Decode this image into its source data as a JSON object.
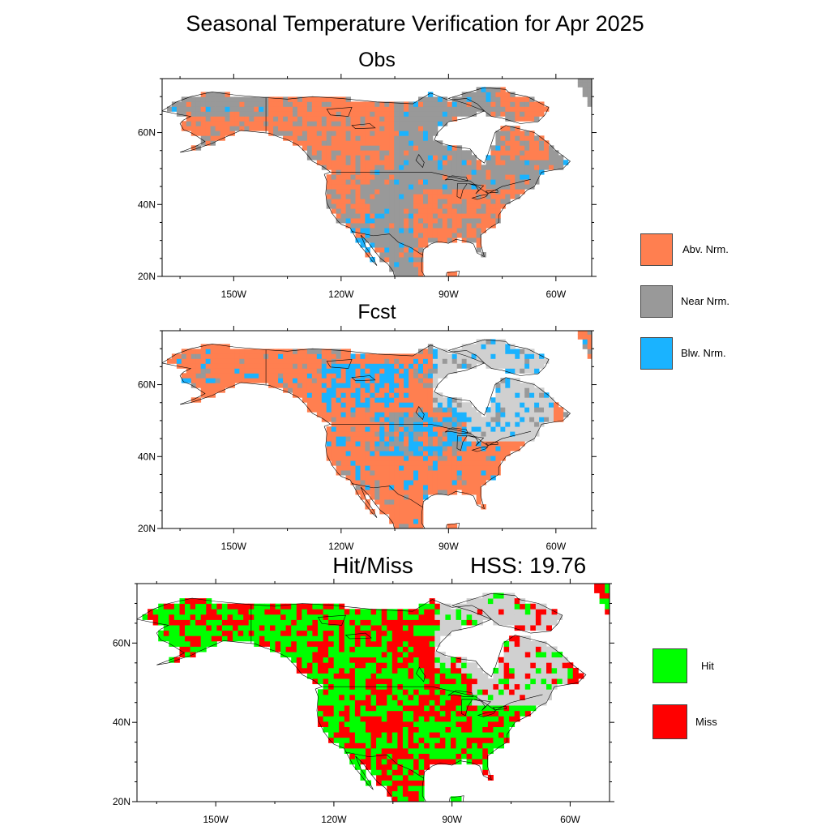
{
  "title": "Seasonal Temperature Verification for Apr 2025",
  "panels": {
    "obs": {
      "title": "Obs"
    },
    "fcst": {
      "title": "Fcst"
    },
    "hitmiss": {
      "title": "Hit/Miss",
      "hss": "HSS: 19.76"
    }
  },
  "axes": {
    "lon_ticks": [
      "150W",
      "120W",
      "90W",
      "60W"
    ],
    "lat_ticks": [
      "60N",
      "40N",
      "20N"
    ]
  },
  "legend_categories": [
    {
      "label": "Abv. Nrm.",
      "color": "#ff7f50"
    },
    {
      "label": "Near Nrm.",
      "color": "#999999"
    },
    {
      "label": "Blw. Nrm.",
      "color": "#1ab3ff"
    }
  ],
  "legend_hitmiss": [
    {
      "label": "Hit",
      "color": "#00ff00"
    },
    {
      "label": "Miss",
      "color": "#ff0000"
    }
  ],
  "colors": {
    "no_forecast": "#d0d0d0",
    "coast": "#000000"
  }
}
